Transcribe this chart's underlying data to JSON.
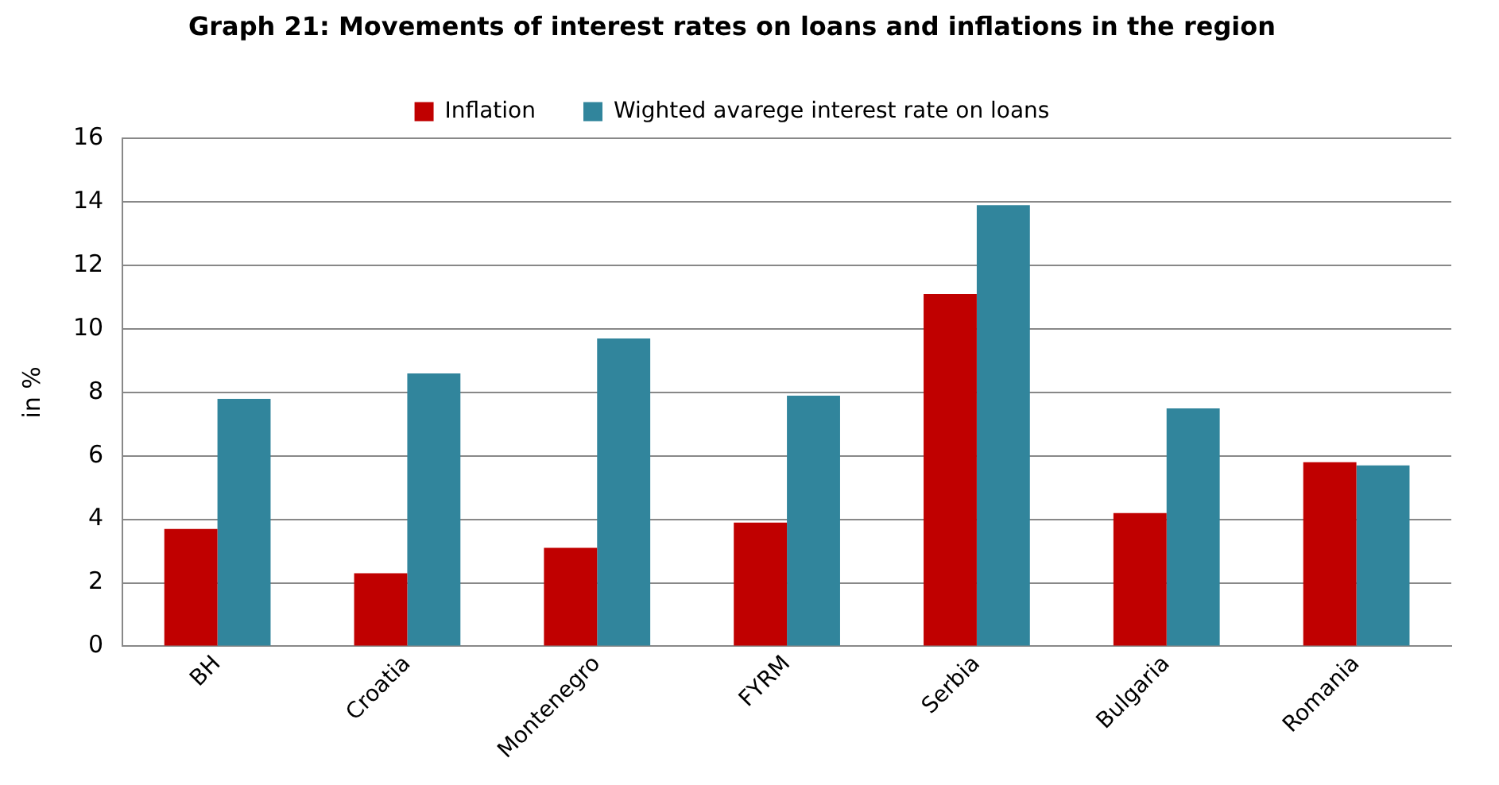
{
  "chart_data": {
    "type": "bar",
    "title": "Graph 21: Movements of interest rates on loans and inflations in the region",
    "ylabel": "in %",
    "categories": [
      "BH",
      "Croatia",
      "Montenegro",
      "FYRM",
      "Serbia",
      "Bulgaria",
      "Romania"
    ],
    "series": [
      {
        "name": "Inflation",
        "color": "#c00000",
        "values": [
          3.7,
          2.3,
          3.1,
          3.9,
          11.1,
          4.2,
          5.8
        ]
      },
      {
        "name": "Wighted avarege interest rate on loans",
        "color": "#31859c",
        "values": [
          7.8,
          8.6,
          9.7,
          7.9,
          13.9,
          7.5,
          5.7
        ]
      }
    ],
    "ylim": [
      0,
      16
    ],
    "yticks": [
      0,
      2,
      4,
      6,
      8,
      10,
      12,
      14,
      16
    ],
    "grid": "y",
    "legend": "top"
  }
}
